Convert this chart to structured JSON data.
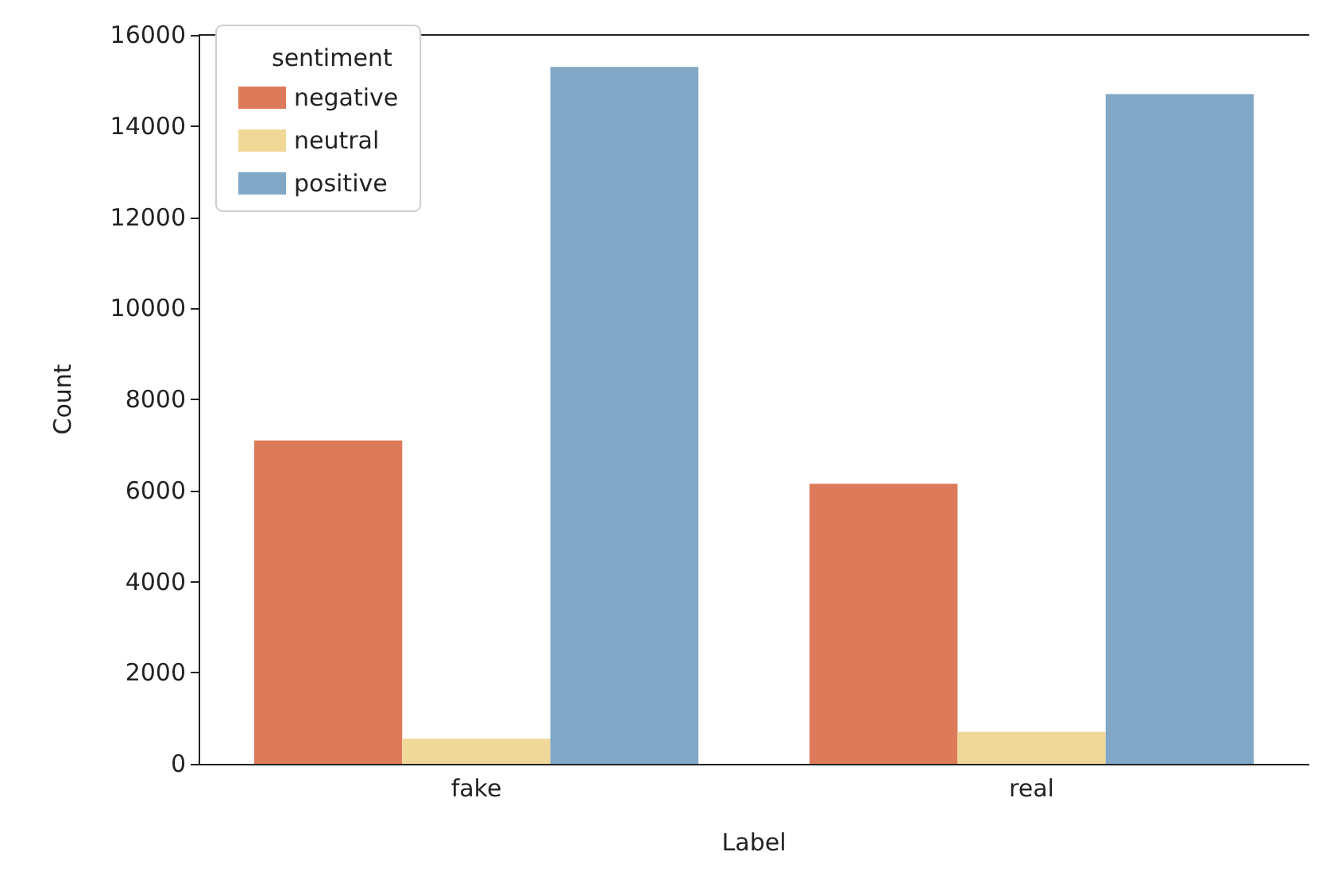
{
  "chart_data": {
    "type": "bar",
    "xlabel": "Label",
    "ylabel": "Count",
    "legend_title": "sentiment",
    "categories": [
      "fake",
      "real"
    ],
    "series": [
      {
        "name": "negative",
        "color": "#dd7a59",
        "values": [
          7100,
          6150
        ]
      },
      {
        "name": "neutral",
        "color": "#f0d898",
        "values": [
          550,
          700
        ]
      },
      {
        "name": "positive",
        "color": "#81a8c6",
        "values": [
          15300,
          14700
        ]
      }
    ],
    "ylim": [
      0,
      16000
    ],
    "yticks": [
      0,
      2000,
      4000,
      6000,
      8000,
      10000,
      12000,
      14000,
      16000
    ],
    "grid": false,
    "legend": "top left"
  }
}
